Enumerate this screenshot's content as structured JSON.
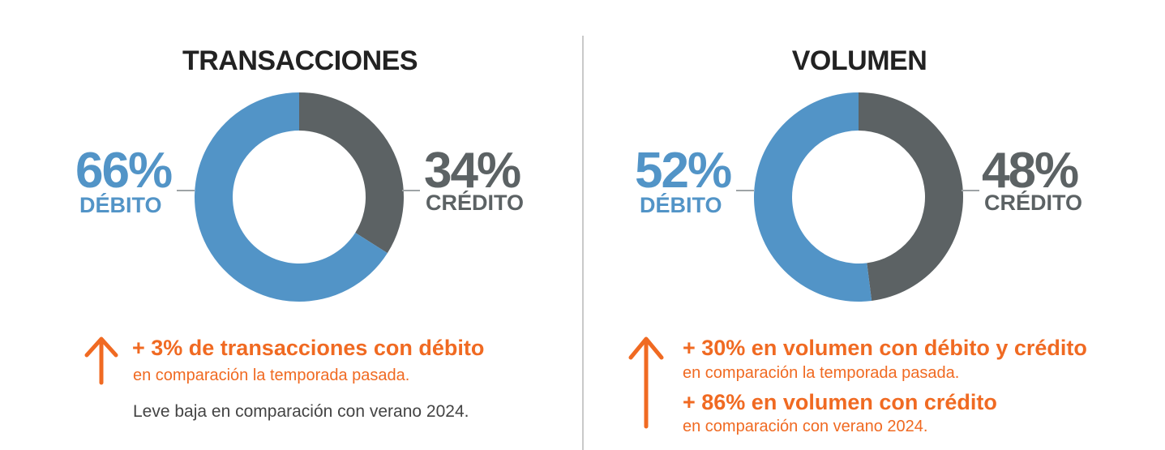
{
  "chart_data": [
    {
      "type": "pie",
      "title": "TRANSACCIONES",
      "slices": [
        {
          "label": "DÉBITO",
          "value": 66,
          "display": "66%",
          "color": "#5294c7"
        },
        {
          "label": "CRÉDITO",
          "value": 34,
          "display": "34%",
          "color": "#5c6264"
        }
      ]
    },
    {
      "type": "pie",
      "title": "VOLUMEN",
      "slices": [
        {
          "label": "DÉBITO",
          "value": 52,
          "display": "52%",
          "color": "#5294c7"
        },
        {
          "label": "CRÉDITO",
          "value": 48,
          "display": "48%",
          "color": "#5c6264"
        }
      ]
    }
  ],
  "left_notes": {
    "headline": "+ 3% de transacciones con débito",
    "sub": "en comparación la temporada pasada.",
    "note": "Leve baja en comparación con verano 2024."
  },
  "right_notes": {
    "headline1": "+ 30% en volumen con débito y crédito",
    "sub1": "en comparación la temporada pasada.",
    "headline2": "+ 86% en volumen con crédito",
    "sub2": "en comparación con verano 2024."
  },
  "colors": {
    "debit": "#5294c7",
    "credit": "#5c6264",
    "accent": "#f06a22"
  }
}
